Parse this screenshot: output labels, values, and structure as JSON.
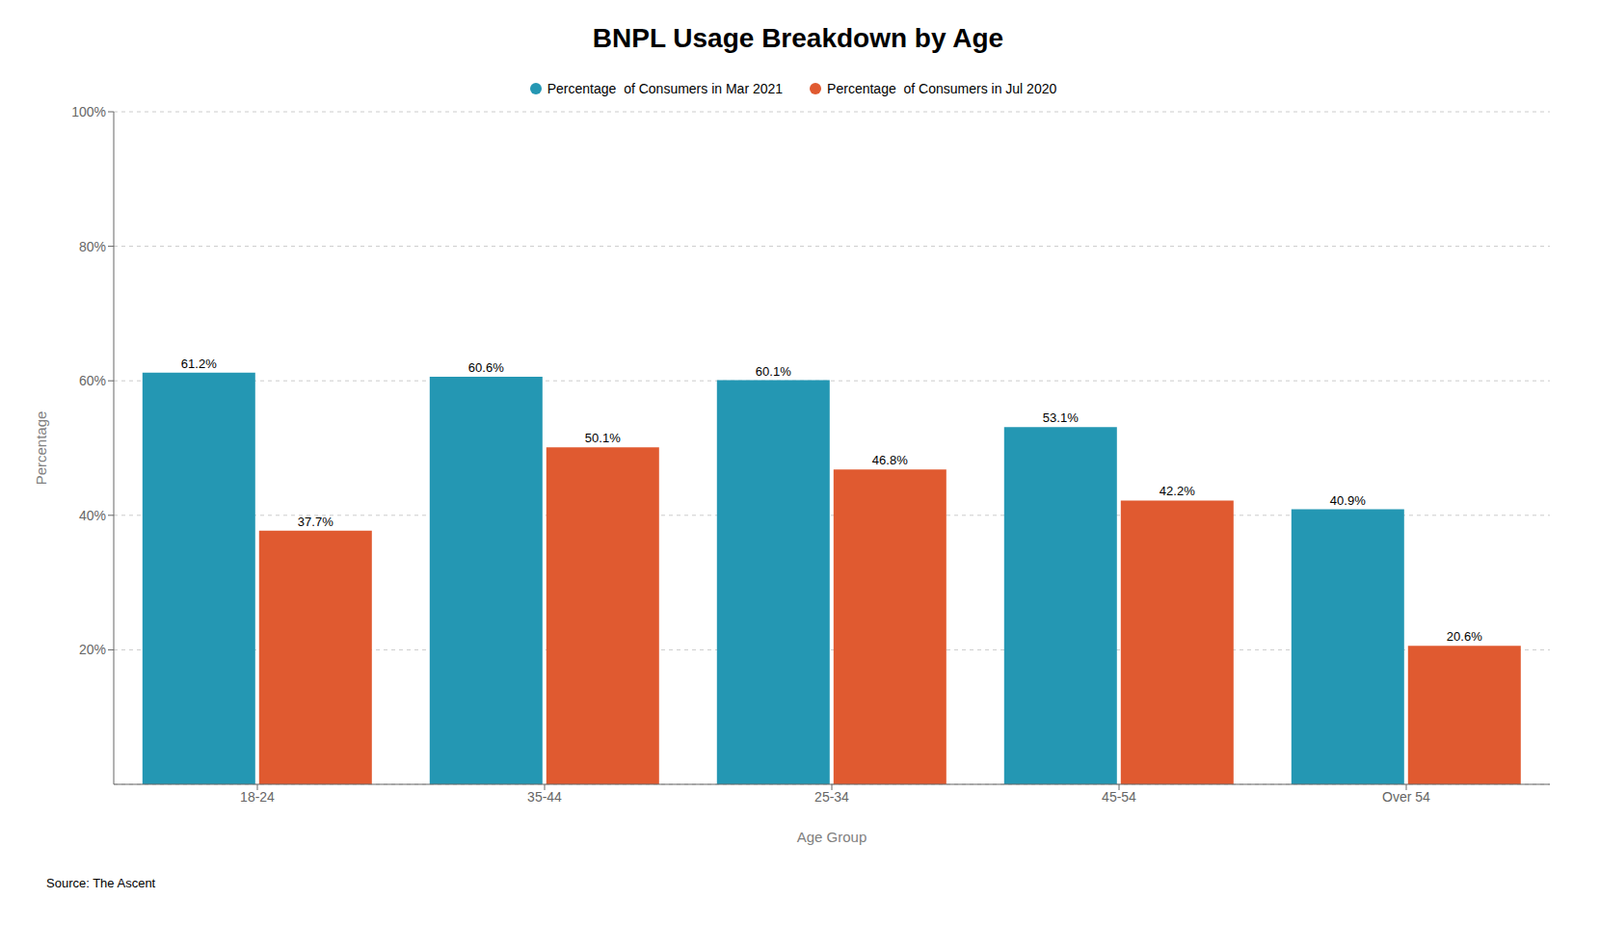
{
  "chart_data": {
    "type": "bar",
    "title": "BNPL Usage Breakdown by Age",
    "xlabel": "Age Group",
    "ylabel": "Percentage",
    "annotations": [
      "Source: The Ascent"
    ],
    "categories": [
      "18-24",
      "35-44",
      "25-34",
      "45-54",
      "Over 54"
    ],
    "series": [
      {
        "name": "Percentage  of Consumers in Mar 2021",
        "color": "#2497B3",
        "values": [
          61.2,
          60.6,
          60.1,
          53.1,
          40.9
        ],
        "value_labels": [
          "61.2%",
          "60.6%",
          "60.1%",
          "53.1%",
          "40.9%"
        ]
      },
      {
        "name": "Percentage  of Consumers in Jul 2020",
        "color": "#E05A30",
        "values": [
          37.7,
          50.1,
          46.8,
          42.2,
          20.6
        ],
        "value_labels": [
          "37.7%",
          "50.1%",
          "46.8%",
          "42.2%",
          "20.6%"
        ]
      }
    ],
    "ylim": [
      0,
      100
    ],
    "yticks": [
      {
        "value": 20,
        "label": "20%"
      },
      {
        "value": 40,
        "label": "40%"
      },
      {
        "value": 60,
        "label": "60%"
      },
      {
        "value": 80,
        "label": "80%"
      },
      {
        "value": 100,
        "label": "100%"
      }
    ],
    "grid": true,
    "legend": "top",
    "data_labels": true
  }
}
